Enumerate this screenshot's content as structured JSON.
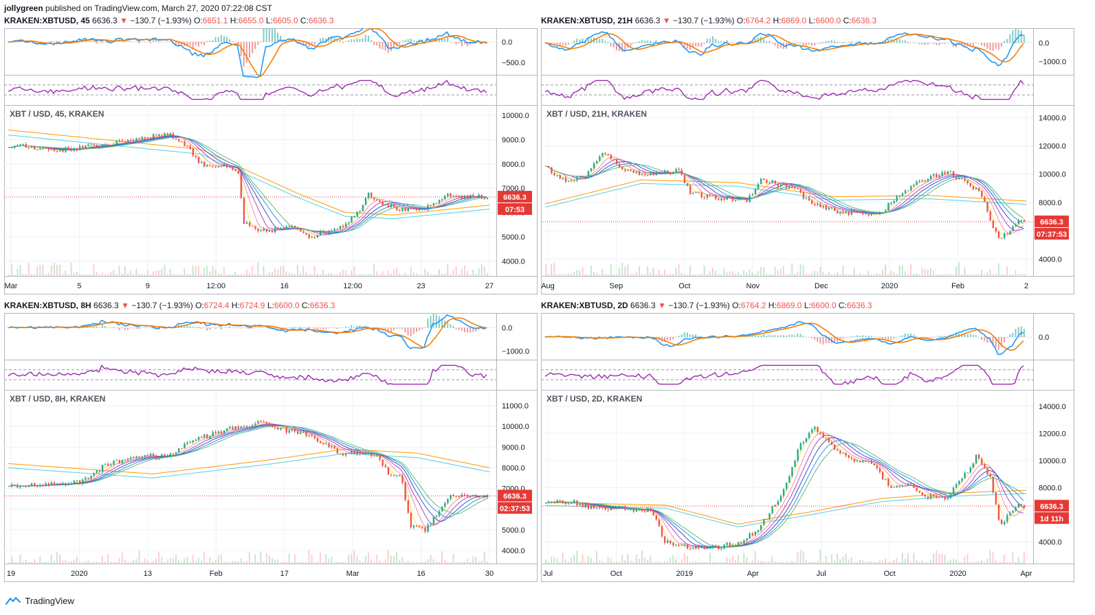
{
  "header": {
    "author": "jollygreen",
    "published_text": "published on TradingView.com, March 27, 2020 07:22:08 CST"
  },
  "brand": {
    "footer_label": "TradingView",
    "logo_icon": "tradingview-logo-icon"
  },
  "colors": {
    "up": "#26a69a",
    "down": "#ef5350",
    "macd": "#2196f3",
    "signal": "#f57c00",
    "rsi": "#9c27b0",
    "grid": "#eef0f4",
    "border": "#b2b5be",
    "price_line": "#e53935"
  },
  "panels": [
    {
      "id": "tl",
      "title": {
        "symbol": "KRAKEN:XBTUSD, 45",
        "last": "6636.3",
        "arrow": "▼",
        "change": "−130.7 (−1.93%)",
        "o_label": "O:",
        "o": "6651.1",
        "h_label": "H:",
        "h": "6655.0",
        "l_label": "L:",
        "l": "6605.0",
        "c_label": "C:",
        "c": "6636.3"
      },
      "legend": "XBT / USD, 45, KRAKEN",
      "price_badge": "6636.3",
      "countdown_badge": "07:53",
      "macd_ticks": [
        "0.0",
        "−500.0"
      ],
      "price_ticks": [
        "10000.0",
        "9000.0",
        "8000.0",
        "7000.0",
        "6000.0",
        "5000.0",
        "4000.0"
      ],
      "x_ticks": [
        "Mar",
        "5",
        "9",
        "12:00",
        "16",
        "12:00",
        "23",
        "27"
      ]
    },
    {
      "id": "tr",
      "title": {
        "symbol": "KRAKEN:XBTUSD, 21H",
        "last": "6636.3",
        "arrow": "▼",
        "change": "−130.7 (−1.93%)",
        "o_label": "O:",
        "o": "6764.2",
        "h_label": "H:",
        "h": "6869.0",
        "l_label": "L:",
        "l": "6600.0",
        "c_label": "C:",
        "c": "6636.3"
      },
      "legend": "XBT / USD, 21H, KRAKEN",
      "price_badge": "6636.3",
      "countdown_badge": "07:37:53",
      "macd_ticks": [
        "0.0",
        "−1000.0"
      ],
      "price_ticks": [
        "14000.0",
        "12000.0",
        "10000.0",
        "8000.0",
        "6000.0",
        "4000.0"
      ],
      "x_ticks": [
        "Aug",
        "Sep",
        "Oct",
        "Nov",
        "Dec",
        "2020",
        "Feb",
        "2"
      ]
    },
    {
      "id": "bl",
      "title": {
        "symbol": "KRAKEN:XBTUSD, 8H",
        "last": "6636.3",
        "arrow": "▼",
        "change": "−130.7 (−1.93%)",
        "o_label": "O:",
        "o": "6724.4",
        "h_label": "H:",
        "h": "6724.9",
        "l_label": "L:",
        "l": "6600.0",
        "c_label": "C:",
        "c": "6636.3"
      },
      "legend": "XBT / USD, 8H, KRAKEN",
      "price_badge": "6636.3",
      "countdown_badge": "02:37:53",
      "macd_ticks": [
        "0.0",
        "−1000.0"
      ],
      "price_ticks": [
        "11000.0",
        "10000.0",
        "9000.0",
        "8000.0",
        "7000.0",
        "6000.0",
        "5000.0",
        "4000.0"
      ],
      "x_ticks": [
        "19",
        "2020",
        "13",
        "Feb",
        "17",
        "Mar",
        "16",
        "30"
      ]
    },
    {
      "id": "br",
      "title": {
        "symbol": "KRAKEN:XBTUSD, 2D",
        "last": "6636.3",
        "arrow": "▼",
        "change": "−130.7 (−1.93%)",
        "o_label": "O:",
        "o": "6764.2",
        "h_label": "H:",
        "h": "6869.0",
        "l_label": "L:",
        "l": "6600.0",
        "c_label": "C:",
        "c": "6636.3"
      },
      "legend": "XBT / USD, 2D, KRAKEN",
      "price_badge": "6636.3",
      "countdown_badge": "1d 11h",
      "macd_ticks": [
        "0.0"
      ],
      "price_ticks": [
        "14000.0",
        "12000.0",
        "10000.0",
        "8000.0",
        "6000.0",
        "4000.0"
      ],
      "x_ticks": [
        "Jul",
        "Oct",
        "2019",
        "Apr",
        "Jul",
        "Oct",
        "2020",
        "Apr"
      ]
    }
  ],
  "chart_data": [
    {
      "type": "line",
      "panel": "tl",
      "series": [],
      "ylim": [
        3500,
        10200
      ],
      "last_price": 6636.3,
      "price_path": [
        [
          0,
          8750
        ],
        [
          0.05,
          8700
        ],
        [
          0.1,
          8550
        ],
        [
          0.16,
          8700
        ],
        [
          0.22,
          8850
        ],
        [
          0.28,
          9100
        ],
        [
          0.33,
          9250
        ],
        [
          0.37,
          8800
        ],
        [
          0.4,
          8000
        ],
        [
          0.45,
          7900
        ],
        [
          0.48,
          7600
        ],
        [
          0.49,
          5600
        ],
        [
          0.52,
          5200
        ],
        [
          0.56,
          5300
        ],
        [
          0.6,
          5400
        ],
        [
          0.63,
          5000
        ],
        [
          0.66,
          5200
        ],
        [
          0.7,
          5500
        ],
        [
          0.73,
          6000
        ],
        [
          0.75,
          6800
        ],
        [
          0.78,
          6400
        ],
        [
          0.82,
          6100
        ],
        [
          0.86,
          6100
        ],
        [
          0.89,
          6300
        ],
        [
          0.91,
          6700
        ],
        [
          0.95,
          6650
        ],
        [
          0.98,
          6636
        ]
      ],
      "slow_ma": [
        [
          0,
          9400
        ],
        [
          0.2,
          9000
        ],
        [
          0.4,
          8600
        ],
        [
          0.5,
          7700
        ],
        [
          0.6,
          6800
        ],
        [
          0.7,
          6000
        ],
        [
          0.8,
          5900
        ],
        [
          0.9,
          6100
        ],
        [
          1,
          6300
        ]
      ],
      "macd_range": [
        -700,
        200
      ]
    },
    {
      "type": "line",
      "panel": "tr",
      "series": [],
      "ylim": [
        3000,
        14500
      ],
      "last_price": 6636.3,
      "price_path": [
        [
          0,
          10500
        ],
        [
          0.04,
          9500
        ],
        [
          0.08,
          9800
        ],
        [
          0.12,
          11500
        ],
        [
          0.17,
          10200
        ],
        [
          0.22,
          10000
        ],
        [
          0.28,
          10300
        ],
        [
          0.3,
          8700
        ],
        [
          0.35,
          8300
        ],
        [
          0.42,
          8200
        ],
        [
          0.45,
          9600
        ],
        [
          0.52,
          9000
        ],
        [
          0.56,
          7800
        ],
        [
          0.62,
          7300
        ],
        [
          0.67,
          7200
        ],
        [
          0.7,
          7300
        ],
        [
          0.75,
          8800
        ],
        [
          0.8,
          9800
        ],
        [
          0.84,
          10200
        ],
        [
          0.88,
          9300
        ],
        [
          0.91,
          8700
        ],
        [
          0.93,
          6500
        ],
        [
          0.95,
          5400
        ],
        [
          0.97,
          6000
        ],
        [
          0.99,
          6636
        ]
      ],
      "slow_ma": [
        [
          0,
          7900
        ],
        [
          0.2,
          9600
        ],
        [
          0.4,
          9400
        ],
        [
          0.6,
          8400
        ],
        [
          0.8,
          8500
        ],
        [
          1,
          8100
        ]
      ],
      "macd_range": [
        -1500,
        500
      ]
    },
    {
      "type": "line",
      "panel": "bl",
      "series": [],
      "ylim": [
        3500,
        11500
      ],
      "last_price": 6636.3,
      "price_path": [
        [
          0,
          7100
        ],
        [
          0.08,
          7200
        ],
        [
          0.15,
          7300
        ],
        [
          0.2,
          8100
        ],
        [
          0.27,
          8600
        ],
        [
          0.33,
          8500
        ],
        [
          0.38,
          9300
        ],
        [
          0.45,
          9800
        ],
        [
          0.53,
          10200
        ],
        [
          0.58,
          9800
        ],
        [
          0.63,
          9600
        ],
        [
          0.69,
          8700
        ],
        [
          0.73,
          8700
        ],
        [
          0.77,
          8600
        ],
        [
          0.79,
          7800
        ],
        [
          0.82,
          7500
        ],
        [
          0.84,
          5200
        ],
        [
          0.87,
          5000
        ],
        [
          0.9,
          6000
        ],
        [
          0.92,
          6600
        ],
        [
          0.95,
          6700
        ],
        [
          0.97,
          6636
        ]
      ],
      "slow_ma": [
        [
          0,
          8200
        ],
        [
          0.3,
          7700
        ],
        [
          0.55,
          8400
        ],
        [
          0.7,
          8900
        ],
        [
          0.85,
          8700
        ],
        [
          1,
          8000
        ]
      ],
      "macd_range": [
        -1200,
        400
      ]
    },
    {
      "type": "line",
      "panel": "br",
      "series": [],
      "ylim": [
        2600,
        14800
      ],
      "last_price": 6636.3,
      "price_path": [
        [
          0,
          6800
        ],
        [
          0.05,
          7000
        ],
        [
          0.1,
          6500
        ],
        [
          0.18,
          6400
        ],
        [
          0.22,
          6300
        ],
        [
          0.25,
          4000
        ],
        [
          0.3,
          3500
        ],
        [
          0.36,
          3600
        ],
        [
          0.41,
          4000
        ],
        [
          0.45,
          5200
        ],
        [
          0.5,
          7900
        ],
        [
          0.53,
          11000
        ],
        [
          0.56,
          12500
        ],
        [
          0.6,
          11000
        ],
        [
          0.64,
          10000
        ],
        [
          0.68,
          9800
        ],
        [
          0.72,
          8100
        ],
        [
          0.76,
          8200
        ],
        [
          0.8,
          7300
        ],
        [
          0.84,
          7200
        ],
        [
          0.88,
          9200
        ],
        [
          0.9,
          10300
        ],
        [
          0.93,
          8600
        ],
        [
          0.95,
          5000
        ],
        [
          0.98,
          6636
        ]
      ],
      "slow_ma": [
        [
          0,
          6900
        ],
        [
          0.25,
          6700
        ],
        [
          0.4,
          5300
        ],
        [
          0.55,
          6200
        ],
        [
          0.7,
          7200
        ],
        [
          0.85,
          7600
        ],
        [
          1,
          7800
        ]
      ],
      "macd_range": [
        -1800,
        1800
      ]
    }
  ]
}
